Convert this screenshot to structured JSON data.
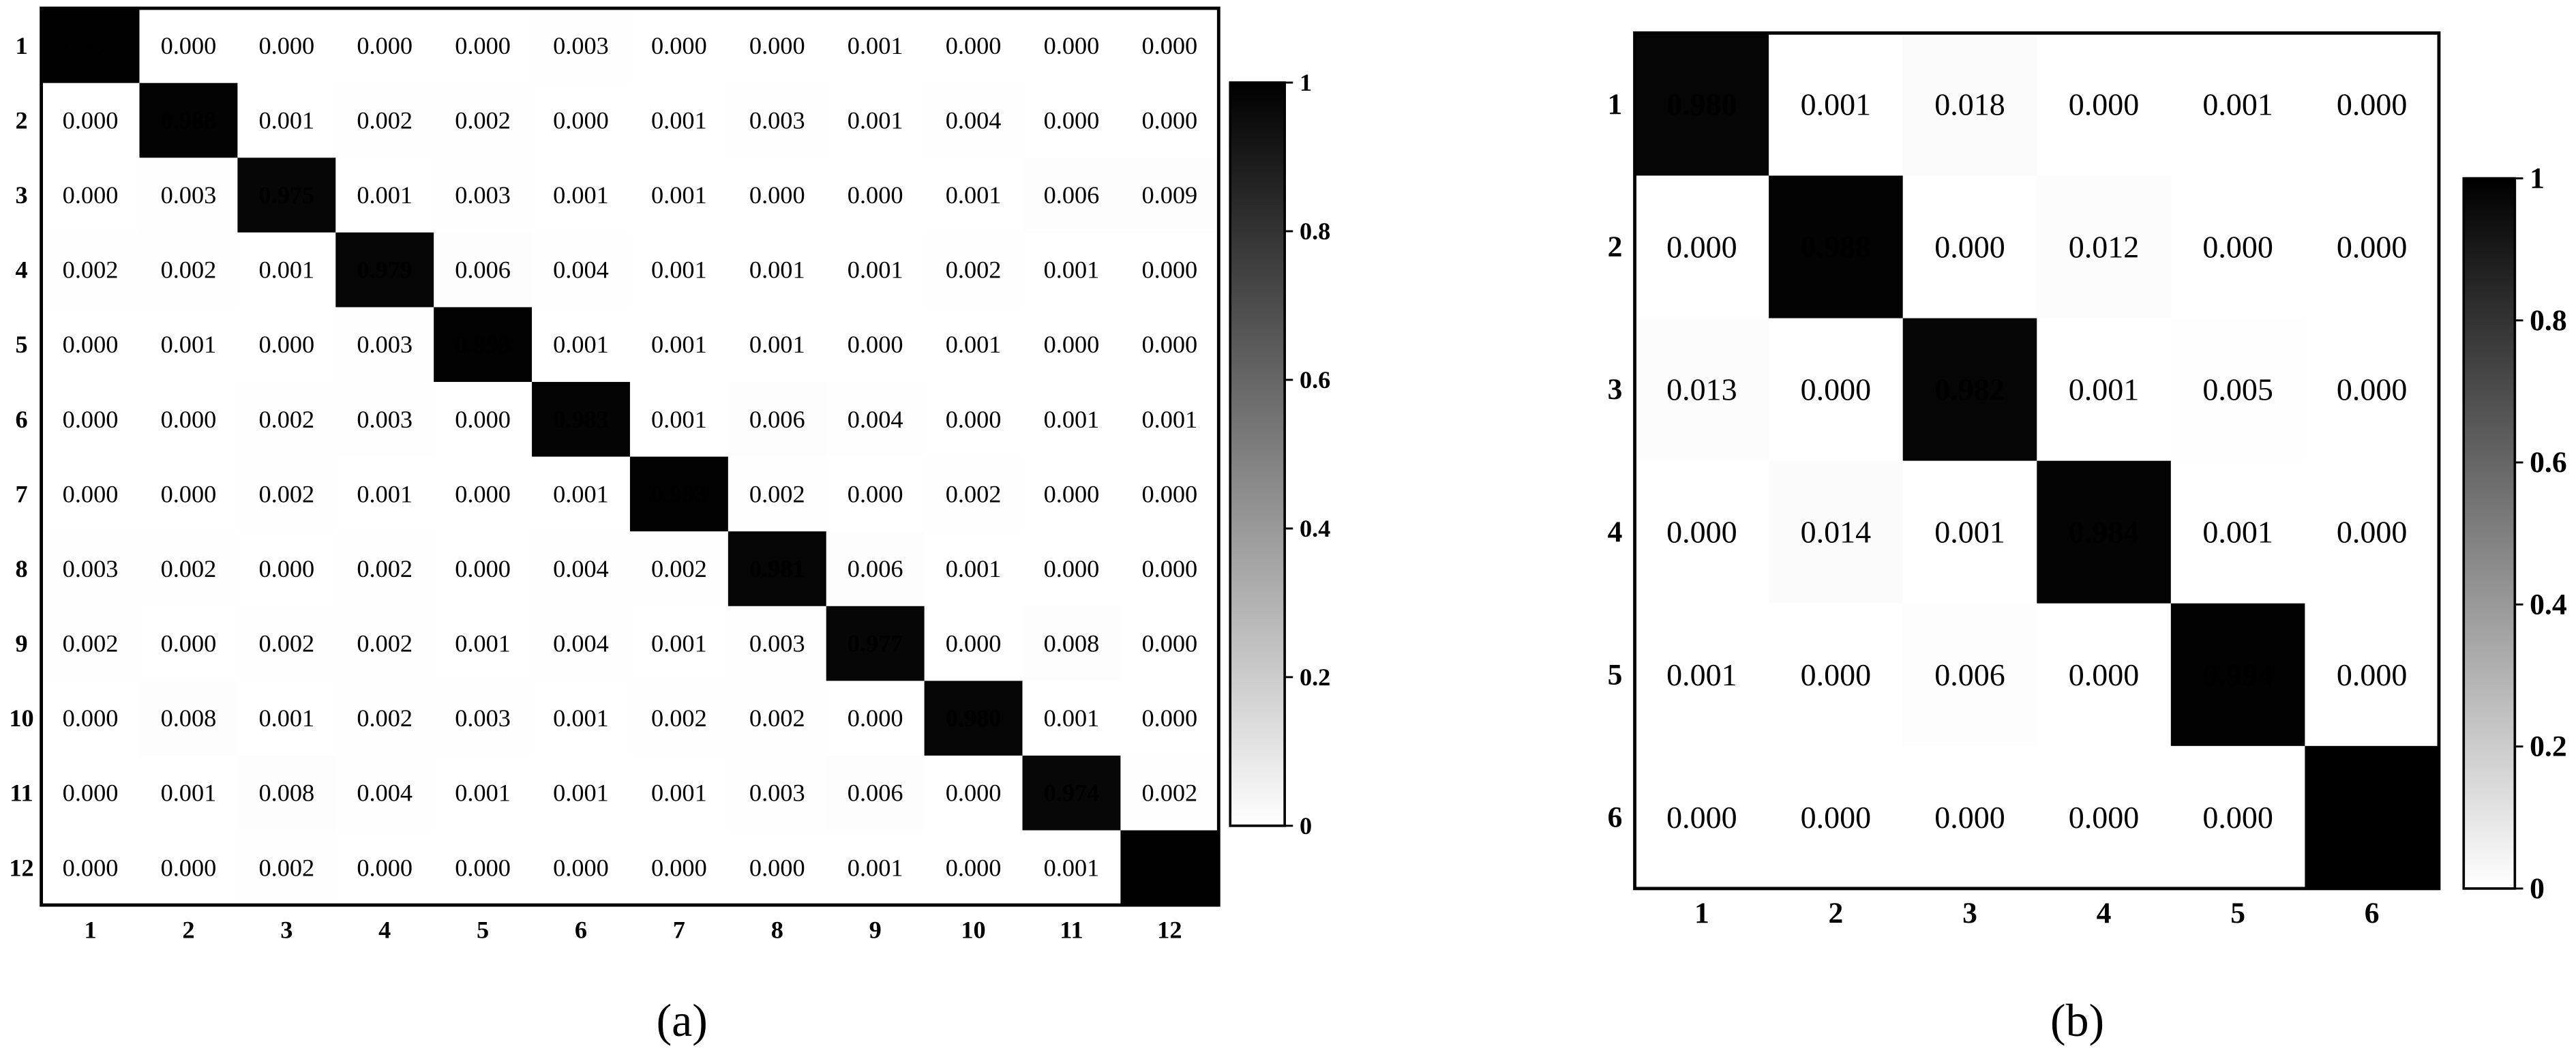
{
  "chart_data": [
    {
      "type": "heatmap",
      "caption": "(a)",
      "xcategories": [
        "1",
        "2",
        "3",
        "4",
        "5",
        "6",
        "7",
        "8",
        "9",
        "10",
        "11",
        "12"
      ],
      "ycategories": [
        "1",
        "2",
        "3",
        "4",
        "5",
        "6",
        "7",
        "8",
        "9",
        "10",
        "11",
        "12"
      ],
      "values": [
        [
          0.996,
          0,
          0,
          0,
          0,
          0.003,
          0,
          0,
          0.001,
          0,
          0,
          0
        ],
        [
          0,
          0.988,
          0.001,
          0.002,
          0.002,
          0,
          0.001,
          0.003,
          0.001,
          0.004,
          0,
          0
        ],
        [
          0,
          0.003,
          0.975,
          0.001,
          0.003,
          0.001,
          0.001,
          0,
          0,
          0.001,
          0.006,
          0.009
        ],
        [
          0.002,
          0.002,
          0.001,
          0.979,
          0.006,
          0.004,
          0.001,
          0.001,
          0.001,
          0.002,
          0.001,
          0
        ],
        [
          0,
          0.001,
          0,
          0.003,
          0.993,
          0.001,
          0.001,
          0.001,
          0,
          0.001,
          0,
          0
        ],
        [
          0,
          0,
          0.002,
          0.003,
          0,
          0.983,
          0.001,
          0.006,
          0.004,
          0,
          0.001,
          0.001
        ],
        [
          0,
          0,
          0.002,
          0.001,
          0,
          0.001,
          0.993,
          0.002,
          0,
          0.002,
          0,
          0
        ],
        [
          0.003,
          0.002,
          0,
          0.002,
          0,
          0.004,
          0.002,
          0.981,
          0.006,
          0.001,
          0,
          0
        ],
        [
          0.002,
          0,
          0.002,
          0.002,
          0.001,
          0.004,
          0.001,
          0.003,
          0.977,
          0,
          0.008,
          0
        ],
        [
          0,
          0.008,
          0.001,
          0.002,
          0.003,
          0.001,
          0.002,
          0.002,
          0,
          0.98,
          0.001,
          0
        ],
        [
          0,
          0.001,
          0.008,
          0.004,
          0.001,
          0.001,
          0.001,
          0.003,
          0.006,
          0,
          0.974,
          0.002
        ],
        [
          0,
          0,
          0.002,
          0,
          0,
          0,
          0,
          0,
          0.001,
          0,
          0.001,
          0.996
        ]
      ],
      "value_labels": [
        [
          "0.996",
          "0.000",
          "0.000",
          "0.000",
          "0.000",
          "0.003",
          "0.000",
          "0.000",
          "0.001",
          "0.000",
          "0.000",
          "0.000"
        ],
        [
          "0.000",
          "0.988",
          "0.001",
          "0.002",
          "0.002",
          "0.000",
          "0.001",
          "0.003",
          "0.001",
          "0.004",
          "0.000",
          "0.000"
        ],
        [
          "0.000",
          "0.003",
          "0.975",
          "0.001",
          "0.003",
          "0.001",
          "0.001",
          "0.000",
          "0.000",
          "0.001",
          "0.006",
          "0.009"
        ],
        [
          "0.002",
          "0.002",
          "0.001",
          "0.979",
          "0.006",
          "0.004",
          "0.001",
          "0.001",
          "0.001",
          "0.002",
          "0.001",
          "0.000"
        ],
        [
          "0.000",
          "0.001",
          "0.000",
          "0.003",
          "0.993",
          "0.001",
          "0.001",
          "0.001",
          "0.000",
          "0.001",
          "0.000",
          "0.000"
        ],
        [
          "0.000",
          "0.000",
          "0.002",
          "0.003",
          "0.000",
          "0.983",
          "0.001",
          "0.006",
          "0.004",
          "0.000",
          "0.001",
          "0.001"
        ],
        [
          "0.000",
          "0.000",
          "0.002",
          "0.001",
          "0.000",
          "0.001",
          "0.993",
          "0.002",
          "0.000",
          "0.002",
          "0.000",
          "0.000"
        ],
        [
          "0.003",
          "0.002",
          "0.000",
          "0.002",
          "0.000",
          "0.004",
          "0.002",
          "0.981",
          "0.006",
          "0.001",
          "0.000",
          "0.000"
        ],
        [
          "0.002",
          "0.000",
          "0.002",
          "0.002",
          "0.001",
          "0.004",
          "0.001",
          "0.003",
          "0.977",
          "0.000",
          "0.008",
          "0.000"
        ],
        [
          "0.000",
          "0.008",
          "0.001",
          "0.002",
          "0.003",
          "0.001",
          "0.002",
          "0.002",
          "0.000",
          "0.980",
          "0.001",
          "0.000"
        ],
        [
          "0.000",
          "0.001",
          "0.008",
          "0.004",
          "0.001",
          "0.001",
          "0.001",
          "0.003",
          "0.006",
          "0.000",
          "0.974",
          "0.002"
        ],
        [
          "0.000",
          "0.000",
          "0.002",
          "0.000",
          "0.000",
          "0.000",
          "0.000",
          "0.000",
          "0.001",
          "0.000",
          "0.001",
          "0.996"
        ]
      ],
      "cmap": [
        "#ffffff",
        "#000000"
      ],
      "zlim": [
        0,
        1
      ],
      "zticks": [
        0,
        0.2,
        0.4,
        0.6,
        0.8,
        1
      ]
    },
    {
      "type": "heatmap",
      "caption": "(b)",
      "xcategories": [
        "1",
        "2",
        "3",
        "4",
        "5",
        "6"
      ],
      "ycategories": [
        "1",
        "2",
        "3",
        "4",
        "5",
        "6"
      ],
      "values": [
        [
          0.98,
          0.001,
          0.018,
          0,
          0.001,
          0
        ],
        [
          0,
          0.988,
          0,
          0.012,
          0,
          0
        ],
        [
          0.013,
          0,
          0.982,
          0.001,
          0.005,
          0
        ],
        [
          0,
          0.014,
          0.001,
          0.984,
          0.001,
          0
        ],
        [
          0.001,
          0,
          0.006,
          0,
          0.994,
          0
        ],
        [
          0,
          0,
          0,
          0,
          0,
          1
        ]
      ],
      "value_labels": [
        [
          "0.980",
          "0.001",
          "0.018",
          "0.000",
          "0.001",
          "0.000"
        ],
        [
          "0.000",
          "0.988",
          "0.000",
          "0.012",
          "0.000",
          "0.000"
        ],
        [
          "0.013",
          "0.000",
          "0.982",
          "0.001",
          "0.005",
          "0.000"
        ],
        [
          "0.000",
          "0.014",
          "0.001",
          "0.984",
          "0.001",
          "0.000"
        ],
        [
          "0.001",
          "0.000",
          "0.006",
          "0.000",
          "0.994",
          "0.000"
        ],
        [
          "0.000",
          "0.000",
          "0.000",
          "0.000",
          "0.000",
          "1.000"
        ]
      ],
      "cmap": [
        "#ffffff",
        "#000000"
      ],
      "zlim": [
        0,
        1
      ],
      "zticks": [
        0,
        0.2,
        0.4,
        0.6,
        0.8,
        1
      ]
    }
  ]
}
